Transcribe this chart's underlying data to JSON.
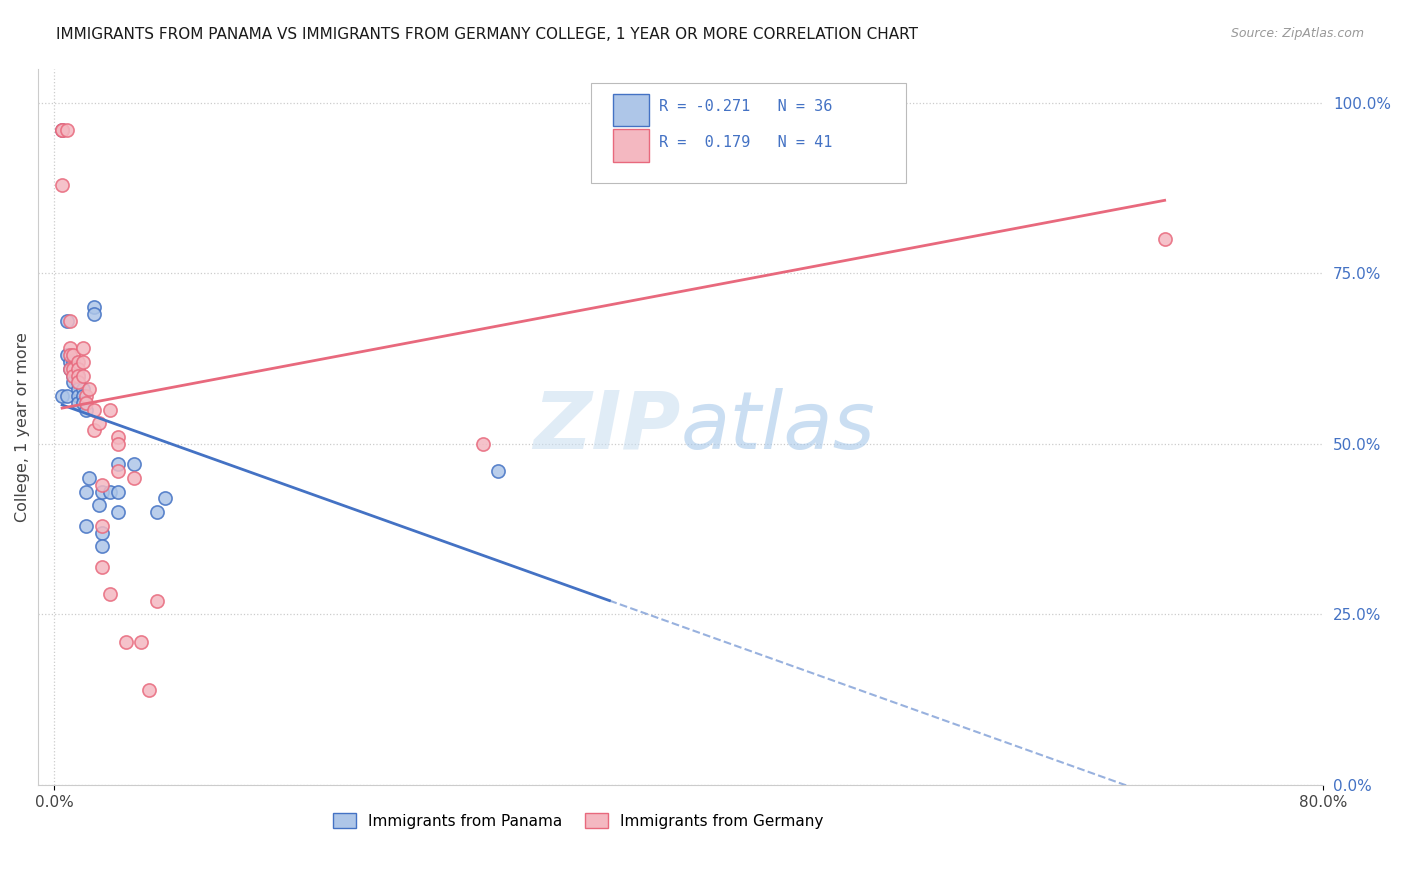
{
  "title": "IMMIGRANTS FROM PANAMA VS IMMIGRANTS FROM GERMANY COLLEGE, 1 YEAR OR MORE CORRELATION CHART",
  "source": "Source: ZipAtlas.com",
  "ylabel": "College, 1 year or more",
  "xlim": [
    -1.0,
    80.0
  ],
  "ylim": [
    0.0,
    105.0
  ],
  "x_ticks": [
    0.0,
    80.0
  ],
  "x_tick_labels": [
    "0.0%",
    "80.0%"
  ],
  "y_ticks_right": [
    0.0,
    25.0,
    50.0,
    75.0,
    100.0
  ],
  "y_tick_labels_right": [
    "0.0%",
    "25.0%",
    "50.0%",
    "75.0%",
    "100.0%"
  ],
  "r_panama": -0.271,
  "n_panama": 36,
  "r_germany": 0.179,
  "n_germany": 41,
  "color_panama": "#aec6e8",
  "color_germany": "#f4b8c1",
  "color_panama_line": "#4472c4",
  "color_germany_line": "#e8697d",
  "watermark": "ZIPatlas",
  "panama_x": [
    0.5,
    0.5,
    0.8,
    0.8,
    0.8,
    1.0,
    1.0,
    1.2,
    1.2,
    1.2,
    1.5,
    1.5,
    1.5,
    1.5,
    1.5,
    1.8,
    1.8,
    1.8,
    2.0,
    2.0,
    2.0,
    2.2,
    2.5,
    2.5,
    2.8,
    3.0,
    3.0,
    3.0,
    3.5,
    4.0,
    4.0,
    4.0,
    5.0,
    6.5,
    7.0,
    28.0
  ],
  "panama_y": [
    96,
    57,
    68,
    63,
    57,
    62,
    61,
    62,
    60,
    59,
    60,
    59,
    58,
    57,
    56,
    58,
    57,
    56,
    55,
    43,
    38,
    45,
    70,
    69,
    41,
    37,
    35,
    43,
    43,
    47,
    43,
    40,
    47,
    40,
    42,
    46
  ],
  "germany_x": [
    0.5,
    0.5,
    0.5,
    0.8,
    1.0,
    1.0,
    1.0,
    1.0,
    1.2,
    1.2,
    1.2,
    1.5,
    1.5,
    1.5,
    1.5,
    1.8,
    1.8,
    1.8,
    2.0,
    2.0,
    2.2,
    2.5,
    2.5,
    2.8,
    3.0,
    3.0,
    3.0,
    3.5,
    3.5,
    4.0,
    4.0,
    4.0,
    4.5,
    5.0,
    5.5,
    6.0,
    6.5,
    27.0,
    35.0,
    40.0,
    70.0
  ],
  "germany_y": [
    96,
    96,
    88,
    96,
    68,
    64,
    63,
    61,
    63,
    61,
    60,
    62,
    61,
    60,
    59,
    64,
    62,
    60,
    57,
    56,
    58,
    55,
    52,
    53,
    44,
    38,
    32,
    28,
    55,
    51,
    50,
    46,
    21,
    45,
    21,
    14,
    27,
    50,
    97,
    97,
    80
  ]
}
